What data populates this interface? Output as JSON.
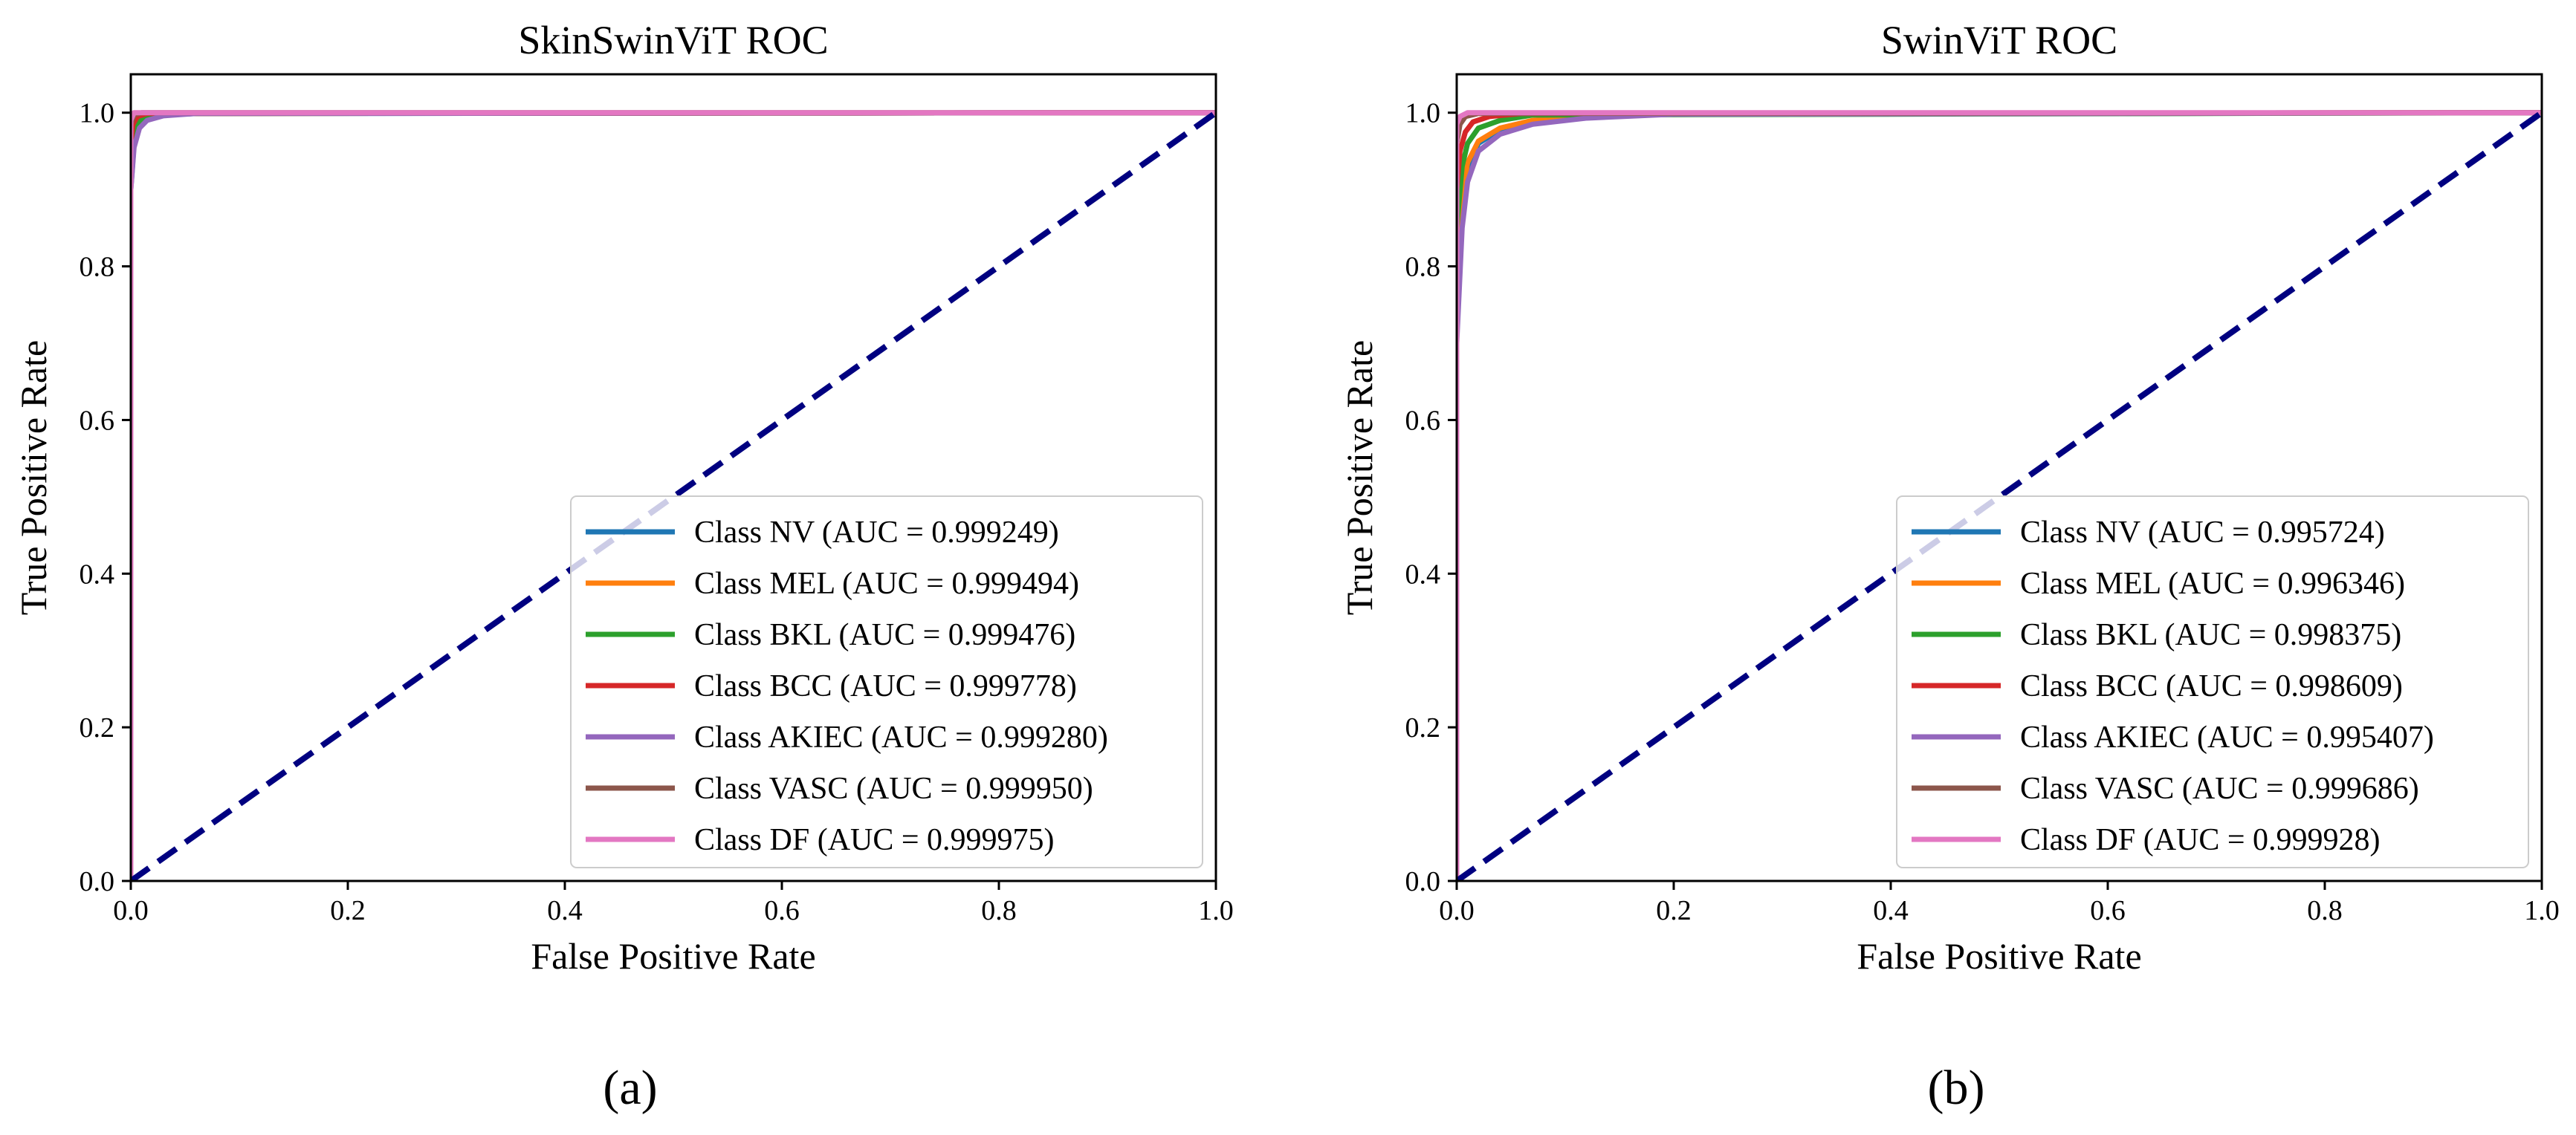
{
  "chart_data": [
    {
      "type": "line",
      "title": "SkinSwinViT ROC",
      "xlabel": "False Positive Rate",
      "ylabel": "True Positive Rate",
      "xlim": [
        0.0,
        1.0
      ],
      "ylim": [
        0.0,
        1.05
      ],
      "xticks": [
        "0.0",
        "0.2",
        "0.4",
        "0.6",
        "0.8",
        "1.0"
      ],
      "yticks": [
        "0.0",
        "0.2",
        "0.4",
        "0.6",
        "0.8",
        "1.0"
      ],
      "grid": false,
      "legend_position": "lower-right",
      "caption": "(a)",
      "series": [
        {
          "name": "Class NV (AUC = 0.999249)",
          "color": "#1f77b4",
          "x": [
            0,
            0,
            0.003,
            0.008,
            0.015,
            0.03,
            0.06,
            1.0
          ],
          "y": [
            0,
            0.9,
            0.96,
            0.985,
            0.993,
            0.997,
            0.999,
            1.0
          ]
        },
        {
          "name": "Class MEL (AUC = 0.999494)",
          "color": "#ff7f0e",
          "x": [
            0,
            0,
            0.003,
            0.008,
            0.02,
            0.04,
            1.0
          ],
          "y": [
            0,
            0.93,
            0.975,
            0.99,
            0.996,
            0.999,
            1.0
          ]
        },
        {
          "name": "Class BKL (AUC = 0.999476)",
          "color": "#2ca02c",
          "x": [
            0,
            0,
            0.003,
            0.008,
            0.02,
            0.04,
            1.0
          ],
          "y": [
            0,
            0.93,
            0.975,
            0.99,
            0.996,
            0.999,
            1.0
          ]
        },
        {
          "name": "Class BCC (AUC = 0.999778)",
          "color": "#d62728",
          "x": [
            0,
            0,
            0.002,
            0.006,
            0.015,
            1.0
          ],
          "y": [
            0,
            0.96,
            0.985,
            0.995,
            0.999,
            1.0
          ]
        },
        {
          "name": "Class AKIEC (AUC = 0.999280)",
          "color": "#9467bd",
          "x": [
            0,
            0,
            0.003,
            0.008,
            0.015,
            0.03,
            0.06,
            1.0
          ],
          "y": [
            0,
            0.9,
            0.955,
            0.98,
            0.99,
            0.996,
            0.999,
            1.0
          ]
        },
        {
          "name": "Class VASC (AUC = 0.999950)",
          "color": "#8c564b",
          "x": [
            0,
            0,
            0.003,
            0.01,
            1.0
          ],
          "y": [
            0,
            0.985,
            0.997,
            1.0,
            1.0
          ]
        },
        {
          "name": "Class DF (AUC = 0.999975)",
          "color": "#e377c2",
          "x": [
            0,
            0,
            0.003,
            1.0
          ],
          "y": [
            0,
            0.99,
            1.0,
            1.0
          ]
        }
      ],
      "reference_line": {
        "x": [
          0,
          1
        ],
        "y": [
          0,
          1
        ],
        "color": "#000080",
        "style": "dashed"
      }
    },
    {
      "type": "line",
      "title": "SwinViT ROC",
      "xlabel": "False Positive Rate",
      "ylabel": "True Positive Rate",
      "xlim": [
        0.0,
        1.0
      ],
      "ylim": [
        0.0,
        1.05
      ],
      "xticks": [
        "0.0",
        "0.2",
        "0.4",
        "0.6",
        "0.8",
        "1.0"
      ],
      "yticks": [
        "0.0",
        "0.2",
        "0.4",
        "0.6",
        "0.8",
        "1.0"
      ],
      "grid": false,
      "legend_position": "lower-right",
      "caption": "(b)",
      "series": [
        {
          "name": "Class NV (AUC = 0.995724)",
          "color": "#1f77b4",
          "x": [
            0,
            0,
            0.005,
            0.01,
            0.02,
            0.04,
            0.07,
            0.12,
            0.2,
            1.0
          ],
          "y": [
            0,
            0.75,
            0.88,
            0.93,
            0.96,
            0.978,
            0.988,
            0.995,
            0.999,
            1.0
          ]
        },
        {
          "name": "Class MEL (AUC = 0.996346)",
          "color": "#ff7f0e",
          "x": [
            0,
            0,
            0.005,
            0.01,
            0.02,
            0.04,
            0.07,
            0.12,
            0.2,
            1.0
          ],
          "y": [
            0,
            0.78,
            0.89,
            0.935,
            0.963,
            0.98,
            0.99,
            0.996,
            0.999,
            1.0
          ]
        },
        {
          "name": "Class BKL (AUC = 0.998375)",
          "color": "#2ca02c",
          "x": [
            0,
            0,
            0.005,
            0.01,
            0.02,
            0.04,
            0.07,
            1.0
          ],
          "y": [
            0,
            0.85,
            0.93,
            0.96,
            0.98,
            0.99,
            0.997,
            1.0
          ]
        },
        {
          "name": "Class BCC (AUC = 0.998609)",
          "color": "#d62728",
          "x": [
            0,
            0,
            0.003,
            0.008,
            0.015,
            0.03,
            0.06,
            1.0
          ],
          "y": [
            0,
            0.9,
            0.95,
            0.975,
            0.988,
            0.995,
            0.999,
            1.0
          ]
        },
        {
          "name": "Class AKIEC (AUC = 0.995407)",
          "color": "#9467bd",
          "x": [
            0,
            0,
            0.005,
            0.01,
            0.02,
            0.04,
            0.07,
            0.12,
            0.2,
            1.0
          ],
          "y": [
            0,
            0.7,
            0.85,
            0.91,
            0.95,
            0.972,
            0.985,
            0.993,
            0.998,
            1.0
          ]
        },
        {
          "name": "Class VASC (AUC = 0.999686)",
          "color": "#8c564b",
          "x": [
            0,
            0,
            0.003,
            0.008,
            0.02,
            1.0
          ],
          "y": [
            0,
            0.96,
            0.985,
            0.995,
            0.999,
            1.0
          ]
        },
        {
          "name": "Class DF (AUC = 0.999928)",
          "color": "#e377c2",
          "x": [
            0,
            0,
            0.003,
            0.01,
            1.0
          ],
          "y": [
            0,
            0.985,
            0.995,
            1.0,
            1.0
          ]
        }
      ],
      "reference_line": {
        "x": [
          0,
          1
        ],
        "y": [
          0,
          1
        ],
        "color": "#000080",
        "style": "dashed"
      }
    }
  ]
}
